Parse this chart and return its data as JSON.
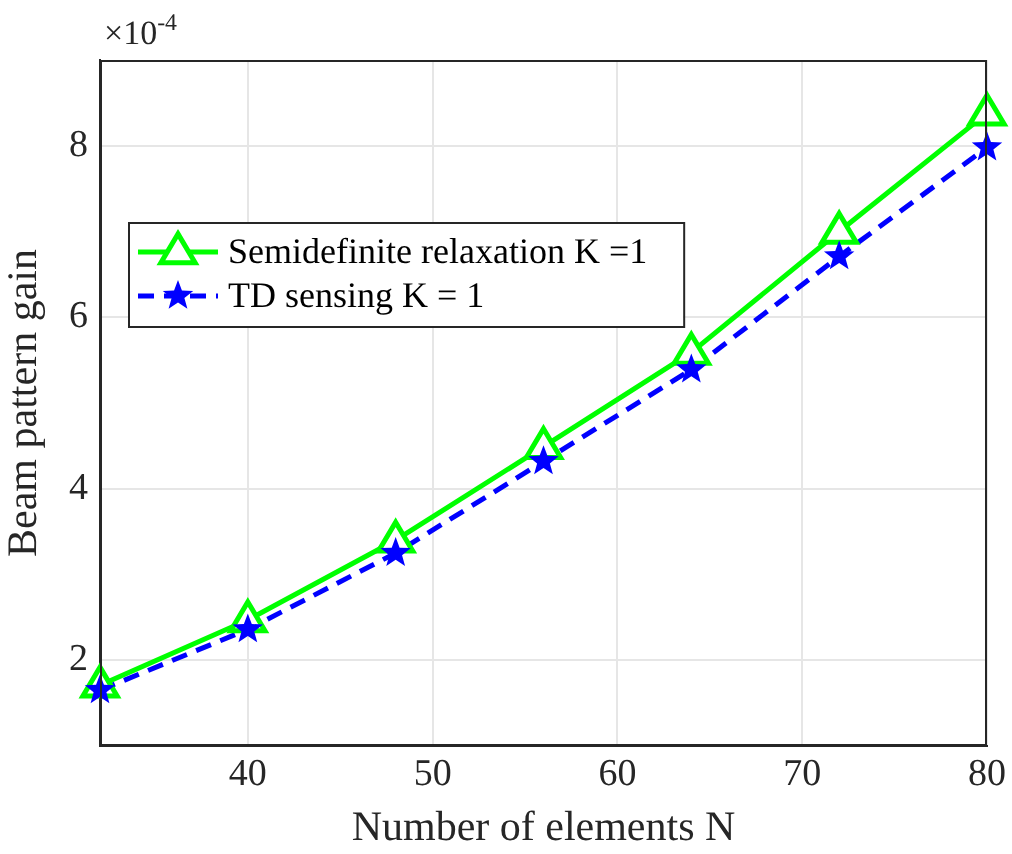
{
  "chart_data": {
    "type": "line",
    "xlabel": "Number of elements N",
    "ylabel": "Beam pattern gain",
    "annotations": [
      "×10$^{-4}$"
    ],
    "x": [
      32,
      40,
      48,
      56,
      64,
      72,
      80
    ],
    "xlim": [
      32,
      80
    ],
    "xticks": [
      40,
      50,
      60,
      70,
      80
    ],
    "ylim": [
      1,
      9
    ],
    "yticks": [
      2,
      4,
      6,
      8
    ],
    "grid": true,
    "legend": "left",
    "series": [
      {
        "name": "Semidefinite relaxation K =1",
        "color": "#00ff00",
        "marker": "triangle",
        "line_style": "solid",
        "values": [
          1.71,
          2.47,
          3.4,
          4.49,
          5.59,
          7.0,
          8.38
        ]
      },
      {
        "name": "TD sensing K = 1",
        "color": "#0000ff",
        "marker": "star",
        "line_style": "dashed",
        "values": [
          1.65,
          2.36,
          3.25,
          4.32,
          5.39,
          6.71,
          7.98
        ]
      }
    ]
  }
}
